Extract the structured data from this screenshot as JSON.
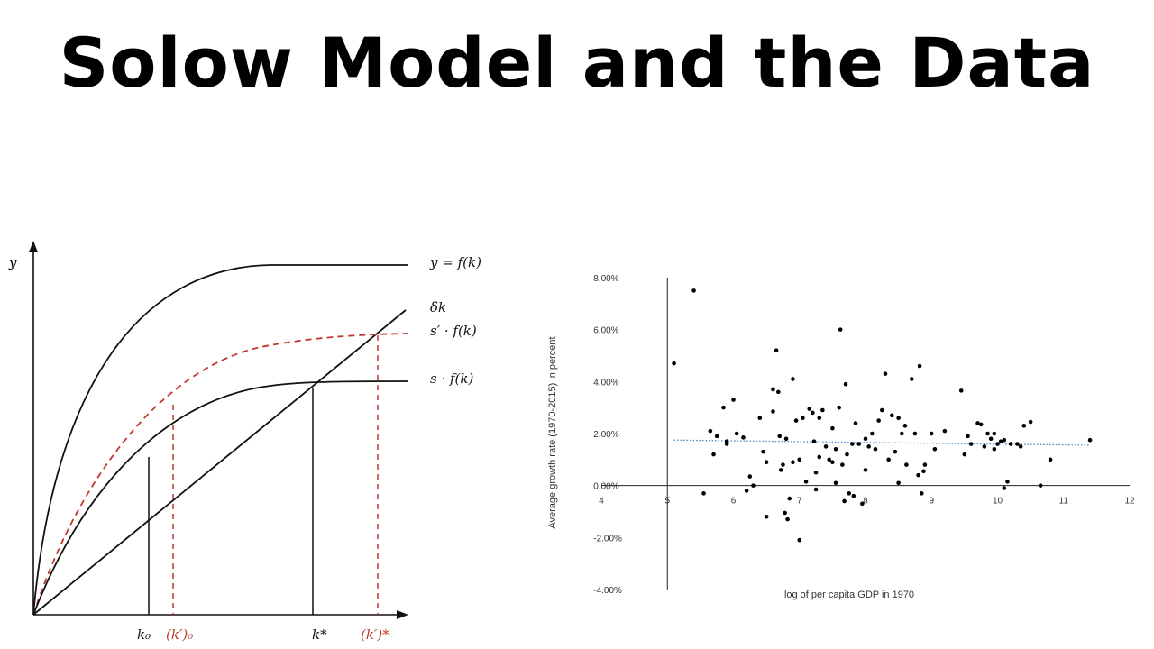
{
  "title": "Solow Model and the Data",
  "chart_data": [
    {
      "type": "line",
      "axis_y_label": "y",
      "curves": [
        {
          "label": "y = f(k)",
          "color": "#111111",
          "style": "solid"
        },
        {
          "label": "δk",
          "color": "#111111",
          "style": "solid"
        },
        {
          "label": "s′ · f(k)",
          "color": "#c0392b",
          "style": "dashed"
        },
        {
          "label": "s · f(k)",
          "color": "#111111",
          "style": "solid"
        }
      ],
      "x_ticks": [
        {
          "label": "k₀",
          "color": "#111111"
        },
        {
          "label": "(k′)₀",
          "color": "#c0392b"
        },
        {
          "label": "k*",
          "color": "#111111"
        },
        {
          "label": "(k′)*",
          "color": "#c0392b"
        }
      ]
    },
    {
      "type": "scatter",
      "xlabel": "log of per capita GDP in 1970",
      "ylabel": "Average growth rate (1970-2015) in percent",
      "xlim": [
        4,
        12
      ],
      "ylim": [
        -4,
        8
      ],
      "x_ticks": [
        "4",
        "5",
        "6",
        "7",
        "8",
        "9",
        "10",
        "11",
        "12"
      ],
      "y_ticks": [
        "-4.00%",
        "-2.00%",
        "0.00%",
        "2.00%",
        "4.00%",
        "6.00%",
        "8.00%"
      ],
      "trendline": {
        "x": [
          5.1,
          11.4
        ],
        "y": [
          1.75,
          1.55
        ],
        "color": "#4a86c8",
        "style": "dotted"
      },
      "points": [
        [
          5.1,
          4.7
        ],
        [
          5.4,
          7.5
        ],
        [
          5.55,
          -0.3
        ],
        [
          5.65,
          2.1
        ],
        [
          5.7,
          1.2
        ],
        [
          5.75,
          1.9
        ],
        [
          5.85,
          3.0
        ],
        [
          5.9,
          1.6
        ],
        [
          5.9,
          1.7
        ],
        [
          6.0,
          3.3
        ],
        [
          6.05,
          2.0
        ],
        [
          6.15,
          1.85
        ],
        [
          6.2,
          -0.2
        ],
        [
          6.25,
          0.35
        ],
        [
          6.3,
          0.0
        ],
        [
          6.4,
          2.6
        ],
        [
          6.45,
          1.3
        ],
        [
          6.5,
          0.9
        ],
        [
          6.5,
          -1.2
        ],
        [
          6.6,
          2.85
        ],
        [
          6.6,
          3.7
        ],
        [
          6.65,
          5.2
        ],
        [
          6.68,
          3.6
        ],
        [
          6.7,
          1.9
        ],
        [
          6.72,
          0.6
        ],
        [
          6.75,
          0.8
        ],
        [
          6.78,
          -1.05
        ],
        [
          6.8,
          1.8
        ],
        [
          6.82,
          -1.3
        ],
        [
          6.85,
          -0.5
        ],
        [
          6.9,
          4.1
        ],
        [
          6.9,
          0.9
        ],
        [
          6.95,
          2.5
        ],
        [
          7.0,
          1.0
        ],
        [
          7.0,
          -2.1
        ],
        [
          7.05,
          2.6
        ],
        [
          7.1,
          0.15
        ],
        [
          7.15,
          2.95
        ],
        [
          7.2,
          2.8
        ],
        [
          7.22,
          1.7
        ],
        [
          7.25,
          0.5
        ],
        [
          7.25,
          -0.15
        ],
        [
          7.3,
          2.6
        ],
        [
          7.3,
          1.1
        ],
        [
          7.35,
          2.9
        ],
        [
          7.4,
          1.5
        ],
        [
          7.45,
          1.0
        ],
        [
          7.5,
          2.2
        ],
        [
          7.5,
          0.9
        ],
        [
          7.55,
          1.4
        ],
        [
          7.55,
          0.1
        ],
        [
          7.6,
          3.0
        ],
        [
          7.62,
          6.0
        ],
        [
          7.65,
          0.8
        ],
        [
          7.68,
          -0.6
        ],
        [
          7.7,
          3.9
        ],
        [
          7.72,
          1.2
        ],
        [
          7.75,
          -0.3
        ],
        [
          7.8,
          1.6
        ],
        [
          7.82,
          -0.4
        ],
        [
          7.85,
          2.4
        ],
        [
          7.9,
          1.6
        ],
        [
          7.95,
          -0.7
        ],
        [
          8.0,
          0.6
        ],
        [
          8.0,
          1.8
        ],
        [
          8.05,
          1.5
        ],
        [
          8.1,
          2.0
        ],
        [
          8.15,
          1.4
        ],
        [
          8.2,
          2.5
        ],
        [
          8.25,
          2.9
        ],
        [
          8.3,
          4.3
        ],
        [
          8.35,
          1.0
        ],
        [
          8.4,
          2.7
        ],
        [
          8.45,
          1.3
        ],
        [
          8.5,
          2.6
        ],
        [
          8.5,
          0.1
        ],
        [
          8.55,
          2.0
        ],
        [
          8.6,
          2.3
        ],
        [
          8.62,
          0.8
        ],
        [
          8.7,
          4.1
        ],
        [
          8.75,
          2.0
        ],
        [
          8.8,
          0.4
        ],
        [
          8.82,
          4.6
        ],
        [
          8.85,
          -0.3
        ],
        [
          8.88,
          0.55
        ],
        [
          8.9,
          0.8
        ],
        [
          9.0,
          2.0
        ],
        [
          9.05,
          1.4
        ],
        [
          9.2,
          2.1
        ],
        [
          9.45,
          3.65
        ],
        [
          9.5,
          1.2
        ],
        [
          9.55,
          1.9
        ],
        [
          9.6,
          1.6
        ],
        [
          9.7,
          2.4
        ],
        [
          9.75,
          2.35
        ],
        [
          9.8,
          1.5
        ],
        [
          9.85,
          2.0
        ],
        [
          9.9,
          1.8
        ],
        [
          9.95,
          2.0
        ],
        [
          9.95,
          1.4
        ],
        [
          10.0,
          1.6
        ],
        [
          10.05,
          1.7
        ],
        [
          10.1,
          1.75
        ],
        [
          10.15,
          0.15
        ],
        [
          10.1,
          -0.1
        ],
        [
          10.2,
          1.6
        ],
        [
          10.3,
          1.6
        ],
        [
          10.35,
          1.5
        ],
        [
          10.4,
          2.3
        ],
        [
          10.5,
          2.45
        ],
        [
          10.65,
          0.0
        ],
        [
          10.8,
          1.0
        ],
        [
          11.4,
          1.75
        ]
      ]
    }
  ]
}
